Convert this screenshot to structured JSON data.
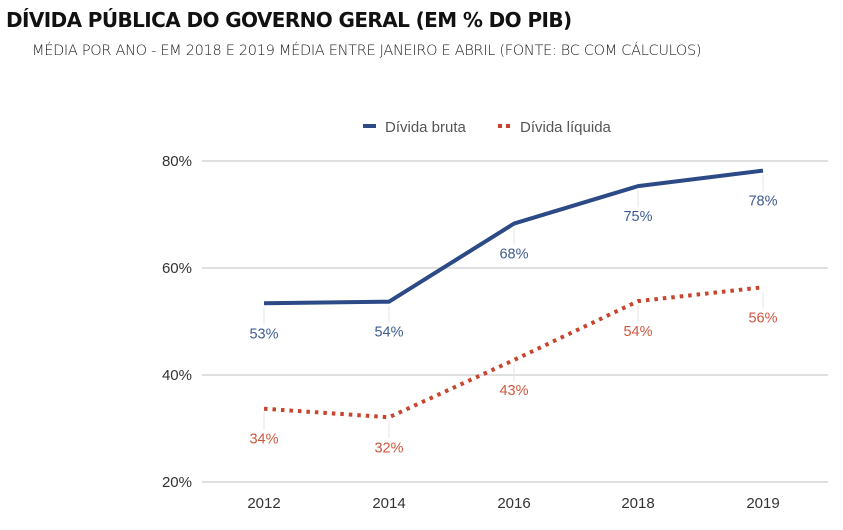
{
  "header": {
    "title": "DÍVIDA PÚBLICA DO GOVERNO GERAL (EM % DO PIB)",
    "subtitle": "MÉDIA POR ANO - EM 2018 E 2019 MÉDIA ENTRE JANEIRO E ABRIL (FONTE: BC COM CÁLCULOS)"
  },
  "chart_data": {
    "type": "line",
    "title": "DÍVIDA PÚBLICA DO GOVERNO GERAL (EM % DO PIB)",
    "subtitle": "MÉDIA POR ANO - EM 2018 E 2019 MÉDIA ENTRE JANEIRO E ABRIL (FONTE: BC COM CÁLCULOS)",
    "xlabel": "",
    "ylabel": "",
    "categories": [
      "2012",
      "2014",
      "2016",
      "2018",
      "2019"
    ],
    "ylim": [
      20,
      80
    ],
    "yticks": [
      20,
      40,
      60,
      80
    ],
    "ytick_labels": [
      "20%",
      "40%",
      "60%",
      "80%"
    ],
    "grid": true,
    "legend_position": "top-center",
    "series": [
      {
        "name": "Dívida bruta",
        "color": "#2b4a86",
        "style": "solid",
        "values": [
          53.4,
          53.7,
          68.3,
          75.3,
          78.2
        ],
        "labels": [
          "53%",
          "54%",
          "68%",
          "75%",
          "78%"
        ]
      },
      {
        "name": "Dívida líquida",
        "color": "#c9442c",
        "style": "dotted",
        "values": [
          33.7,
          32.1,
          42.8,
          53.8,
          56.4
        ],
        "labels": [
          "34%",
          "32%",
          "43%",
          "54%",
          "56%"
        ]
      }
    ]
  }
}
